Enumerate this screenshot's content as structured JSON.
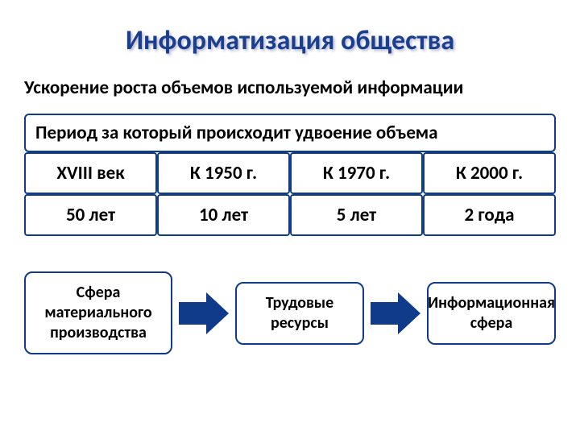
{
  "title": {
    "text": "Информатизация общества",
    "color": "#1b3f8f",
    "fontsize": 34
  },
  "subtitle": {
    "text": "Ускорение роста объемов используемой информации",
    "fontsize": 23
  },
  "table": {
    "header_bg": "#ffffff",
    "border_color": "#103a8a",
    "header": "Период за который происходит  удвоение объема",
    "header_fontsize": 23,
    "cell_fontsize": 23,
    "rows": [
      [
        "XVIII век",
        "К 1950 г.",
        "К 1970 г.",
        "К 2000 г."
      ],
      [
        "50 лет",
        "10 лет",
        "5 лет",
        "2 года"
      ]
    ]
  },
  "flow": {
    "box_border_color": "#103a8a",
    "arrow_color": "#103a8a",
    "box_fontsize": 20,
    "boxes": [
      "Сфера материального производства",
      "Трудовые ресурсы",
      "Информационная сфера"
    ]
  }
}
